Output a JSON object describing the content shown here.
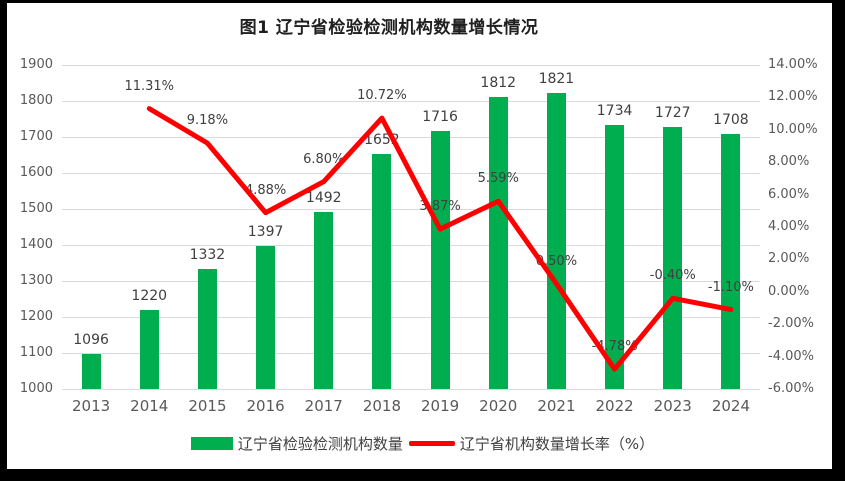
{
  "title": "图1 辽宁省检验检测机构数量增长情况",
  "colors": {
    "bar": "#00AE50",
    "line": "#FF0000",
    "grid": "#DADADA",
    "axis_text": "#595959",
    "data_label": "#404040",
    "frame": "#000000"
  },
  "chart_data": {
    "type": "bar+line",
    "title": "图1 辽宁省检验检测机构数量增长情况",
    "categories": [
      "2013",
      "2014",
      "2015",
      "2016",
      "2017",
      "2018",
      "2019",
      "2020",
      "2021",
      "2022",
      "2023",
      "2024"
    ],
    "series": [
      {
        "name": "辽宁省检验检测机构数量",
        "type": "bar",
        "axis": "left",
        "color": "#00AE50",
        "values": [
          1096,
          1220,
          1332,
          1397,
          1492,
          1652,
          1716,
          1812,
          1821,
          1734,
          1727,
          1708
        ],
        "labels": [
          "1096",
          "1220",
          "1332",
          "1397",
          "1492",
          "1652",
          "1716",
          "1812",
          "1821",
          "1734",
          "1727",
          "1708"
        ]
      },
      {
        "name": "辽宁省机构数量增长率（%）",
        "type": "line",
        "axis": "right",
        "color": "#FF0000",
        "values": [
          null,
          11.31,
          9.18,
          4.88,
          6.8,
          10.72,
          3.87,
          5.59,
          0.5,
          -4.78,
          -0.4,
          -1.1
        ],
        "labels": [
          null,
          "11.31%",
          "9.18%",
          "4.88%",
          "6.80%",
          "10.72%",
          "3.87%",
          "5.59%",
          "0.50%",
          "-4.78%",
          "-0.40%",
          "-1.10%"
        ]
      }
    ],
    "left_axis": {
      "min": 1000,
      "max": 1900,
      "step": 100,
      "ticks": [
        "1900",
        "1800",
        "1700",
        "1600",
        "1500",
        "1400",
        "1300",
        "1200",
        "1100",
        "1000"
      ]
    },
    "right_axis": {
      "min": -6,
      "max": 14,
      "step": 2,
      "ticks": [
        "14.00%",
        "12.00%",
        "10.00%",
        "8.00%",
        "6.00%",
        "4.00%",
        "2.00%",
        "0.00%",
        "-2.00%",
        "-4.00%",
        "-6.00%"
      ]
    },
    "grid": true,
    "legend_position": "bottom"
  }
}
